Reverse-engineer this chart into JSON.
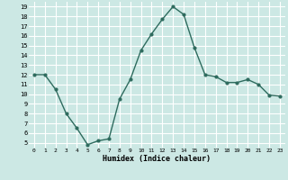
{
  "x": [
    0,
    1,
    2,
    3,
    4,
    5,
    6,
    7,
    8,
    9,
    10,
    11,
    12,
    13,
    14,
    15,
    16,
    17,
    18,
    19,
    20,
    21,
    22,
    23
  ],
  "y": [
    12,
    12,
    10.5,
    8,
    6.5,
    4.8,
    5.2,
    5.4,
    9.5,
    11.5,
    14.5,
    16.2,
    17.7,
    19.0,
    18.2,
    14.8,
    12.0,
    11.8,
    11.2,
    11.2,
    11.5,
    11.0,
    9.9,
    9.8
  ],
  "xlabel": "Humidex (Indice chaleur)",
  "line_color": "#2e6b5e",
  "bg_color": "#cce8e4",
  "grid_color": "#ffffff",
  "xlim": [
    -0.5,
    23.5
  ],
  "ylim": [
    4.5,
    19.5
  ],
  "yticks": [
    5,
    6,
    7,
    8,
    9,
    10,
    11,
    12,
    13,
    14,
    15,
    16,
    17,
    18,
    19
  ],
  "xticks": [
    0,
    1,
    2,
    3,
    4,
    5,
    6,
    7,
    8,
    9,
    10,
    11,
    12,
    13,
    14,
    15,
    16,
    17,
    18,
    19,
    20,
    21,
    22,
    23
  ]
}
